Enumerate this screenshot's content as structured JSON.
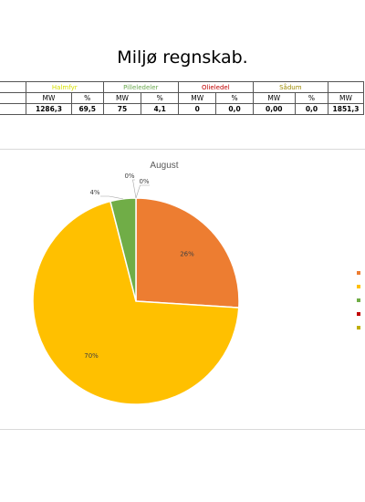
{
  "page": {
    "title": "Miljø regnskab."
  },
  "table": {
    "groups": [
      {
        "label": "",
        "color": "#000000"
      },
      {
        "label": "Halmfyr",
        "color": "#d6e000"
      },
      {
        "label": "Pilleledeler",
        "color": "#6aa84f"
      },
      {
        "label": "Olieledel",
        "color": "#c00000"
      },
      {
        "label": "Sådum",
        "color": "#9c8a00"
      },
      {
        "label": "",
        "color": "#000000"
      }
    ],
    "units": [
      "",
      "MW",
      "%",
      "MW",
      "%",
      "MW",
      "%",
      "MW",
      "%",
      "MW"
    ],
    "values": [
      "",
      "1286,3",
      "69,5",
      "75",
      "4,1",
      "0",
      "0,0",
      "0,00",
      "0,0",
      "1851,3"
    ]
  },
  "chart_data": {
    "type": "pie",
    "title": "August",
    "slices": [
      {
        "value": 26,
        "label": "26%",
        "color": "#ed7d31"
      },
      {
        "value": 70,
        "label": "70%",
        "color": "#ffc000"
      },
      {
        "value": 4,
        "label": "4%",
        "color": "#70ad47"
      },
      {
        "value": 0,
        "label": "0%",
        "color": "#c00000"
      },
      {
        "value": 0,
        "label": "0%",
        "color": "#bfae00"
      }
    ],
    "legend_placement": "right"
  }
}
